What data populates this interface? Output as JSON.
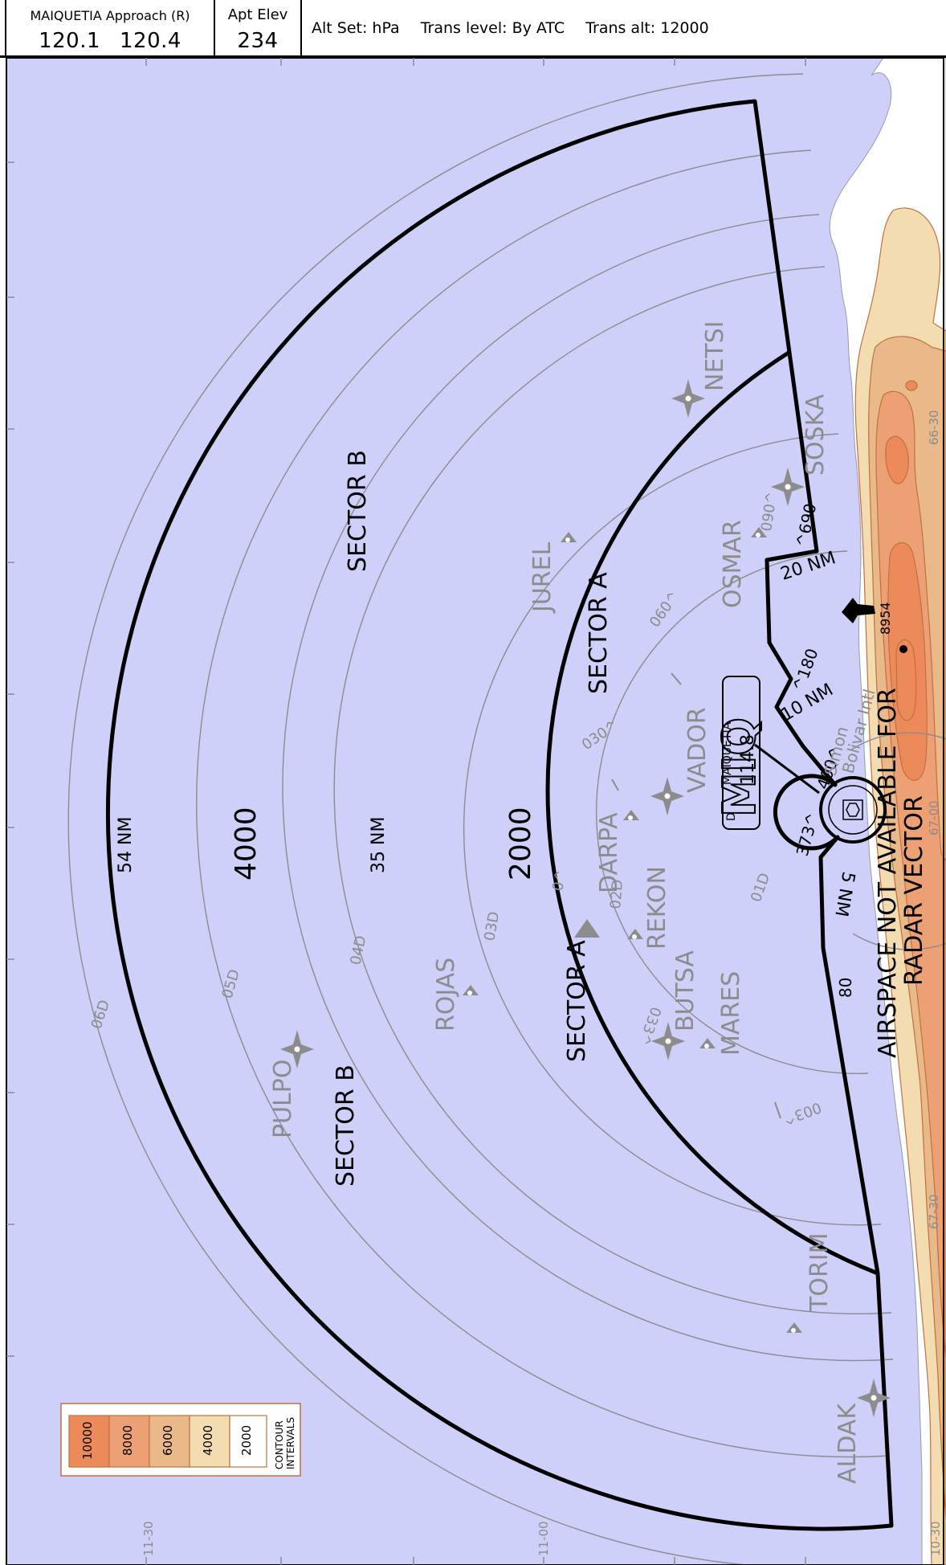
{
  "header": {
    "facility": "MAIQUETIA Approach (R)",
    "frequencies": [
      "120.1",
      "120.4"
    ],
    "apt_elev_label": "Apt Elev",
    "apt_elev_value": "234",
    "alt_set": "Alt Set: hPa",
    "trans_level": "Trans level: By ATC",
    "trans_alt": "Trans alt: 12000"
  },
  "rings": {
    "r54": "54 NM",
    "r35": "35 NM",
    "r20": "20 NM",
    "r10": "10 NM",
    "r5": "5 NM"
  },
  "sectors": {
    "b_north": "SECTOR B",
    "b_south": "SECTOR B",
    "a_north": "SECTOR A",
    "a_south": "SECTOR A"
  },
  "altitudes": {
    "outer": "4000",
    "middle": "2000",
    "b1": "690",
    "b2": "180",
    "b3": "373",
    "b4": "400",
    "b5": "80"
  },
  "fixes": [
    "NETSI",
    "SOSKA",
    "JUREL",
    "OSMAR",
    "VADOR",
    "DARPA",
    "REKON",
    "ROJAS",
    "BUTSA",
    "MARES",
    "PULPO",
    "TORIM",
    "ALDAK"
  ],
  "dme": [
    "01D",
    "02D",
    "03D",
    "04D",
    "05D",
    "06D"
  ],
  "radials": [
    "060^",
    "090^",
    "030^",
    "0^",
    "033^",
    "003^"
  ],
  "navaid": {
    "ident": "MIQ",
    "name": "MAIQUETIA",
    "freq": "114.8",
    "type": "D"
  },
  "airport": {
    "name_line1": "Simon",
    "name_line2": "Bolivar Intl"
  },
  "terrain": {
    "spot_elev": "8954",
    "notice_line1": "AIRSPACE NOT AVAILABLE FOR",
    "notice_line2": "RADAR VECTOR"
  },
  "grid": {
    "lon1": "11-30",
    "lon2": "11-00",
    "lon3": "10-30",
    "lat1": "66-30",
    "lat2": "67-00",
    "lat3": "67-30"
  },
  "legend": {
    "values": [
      "10000",
      "8000",
      "6000",
      "4000",
      "2000"
    ],
    "label1": "CONTOUR",
    "label2": "INTERVALS"
  },
  "colors": {
    "water": "#cfd0fa",
    "land": "#ffffff",
    "c2000": "#f2dcb0",
    "c4000": "#e9b98a",
    "c6000": "#eda074",
    "c8000": "#ec8a5a",
    "grey": "#8c8c8c",
    "boundary": "#000000"
  }
}
